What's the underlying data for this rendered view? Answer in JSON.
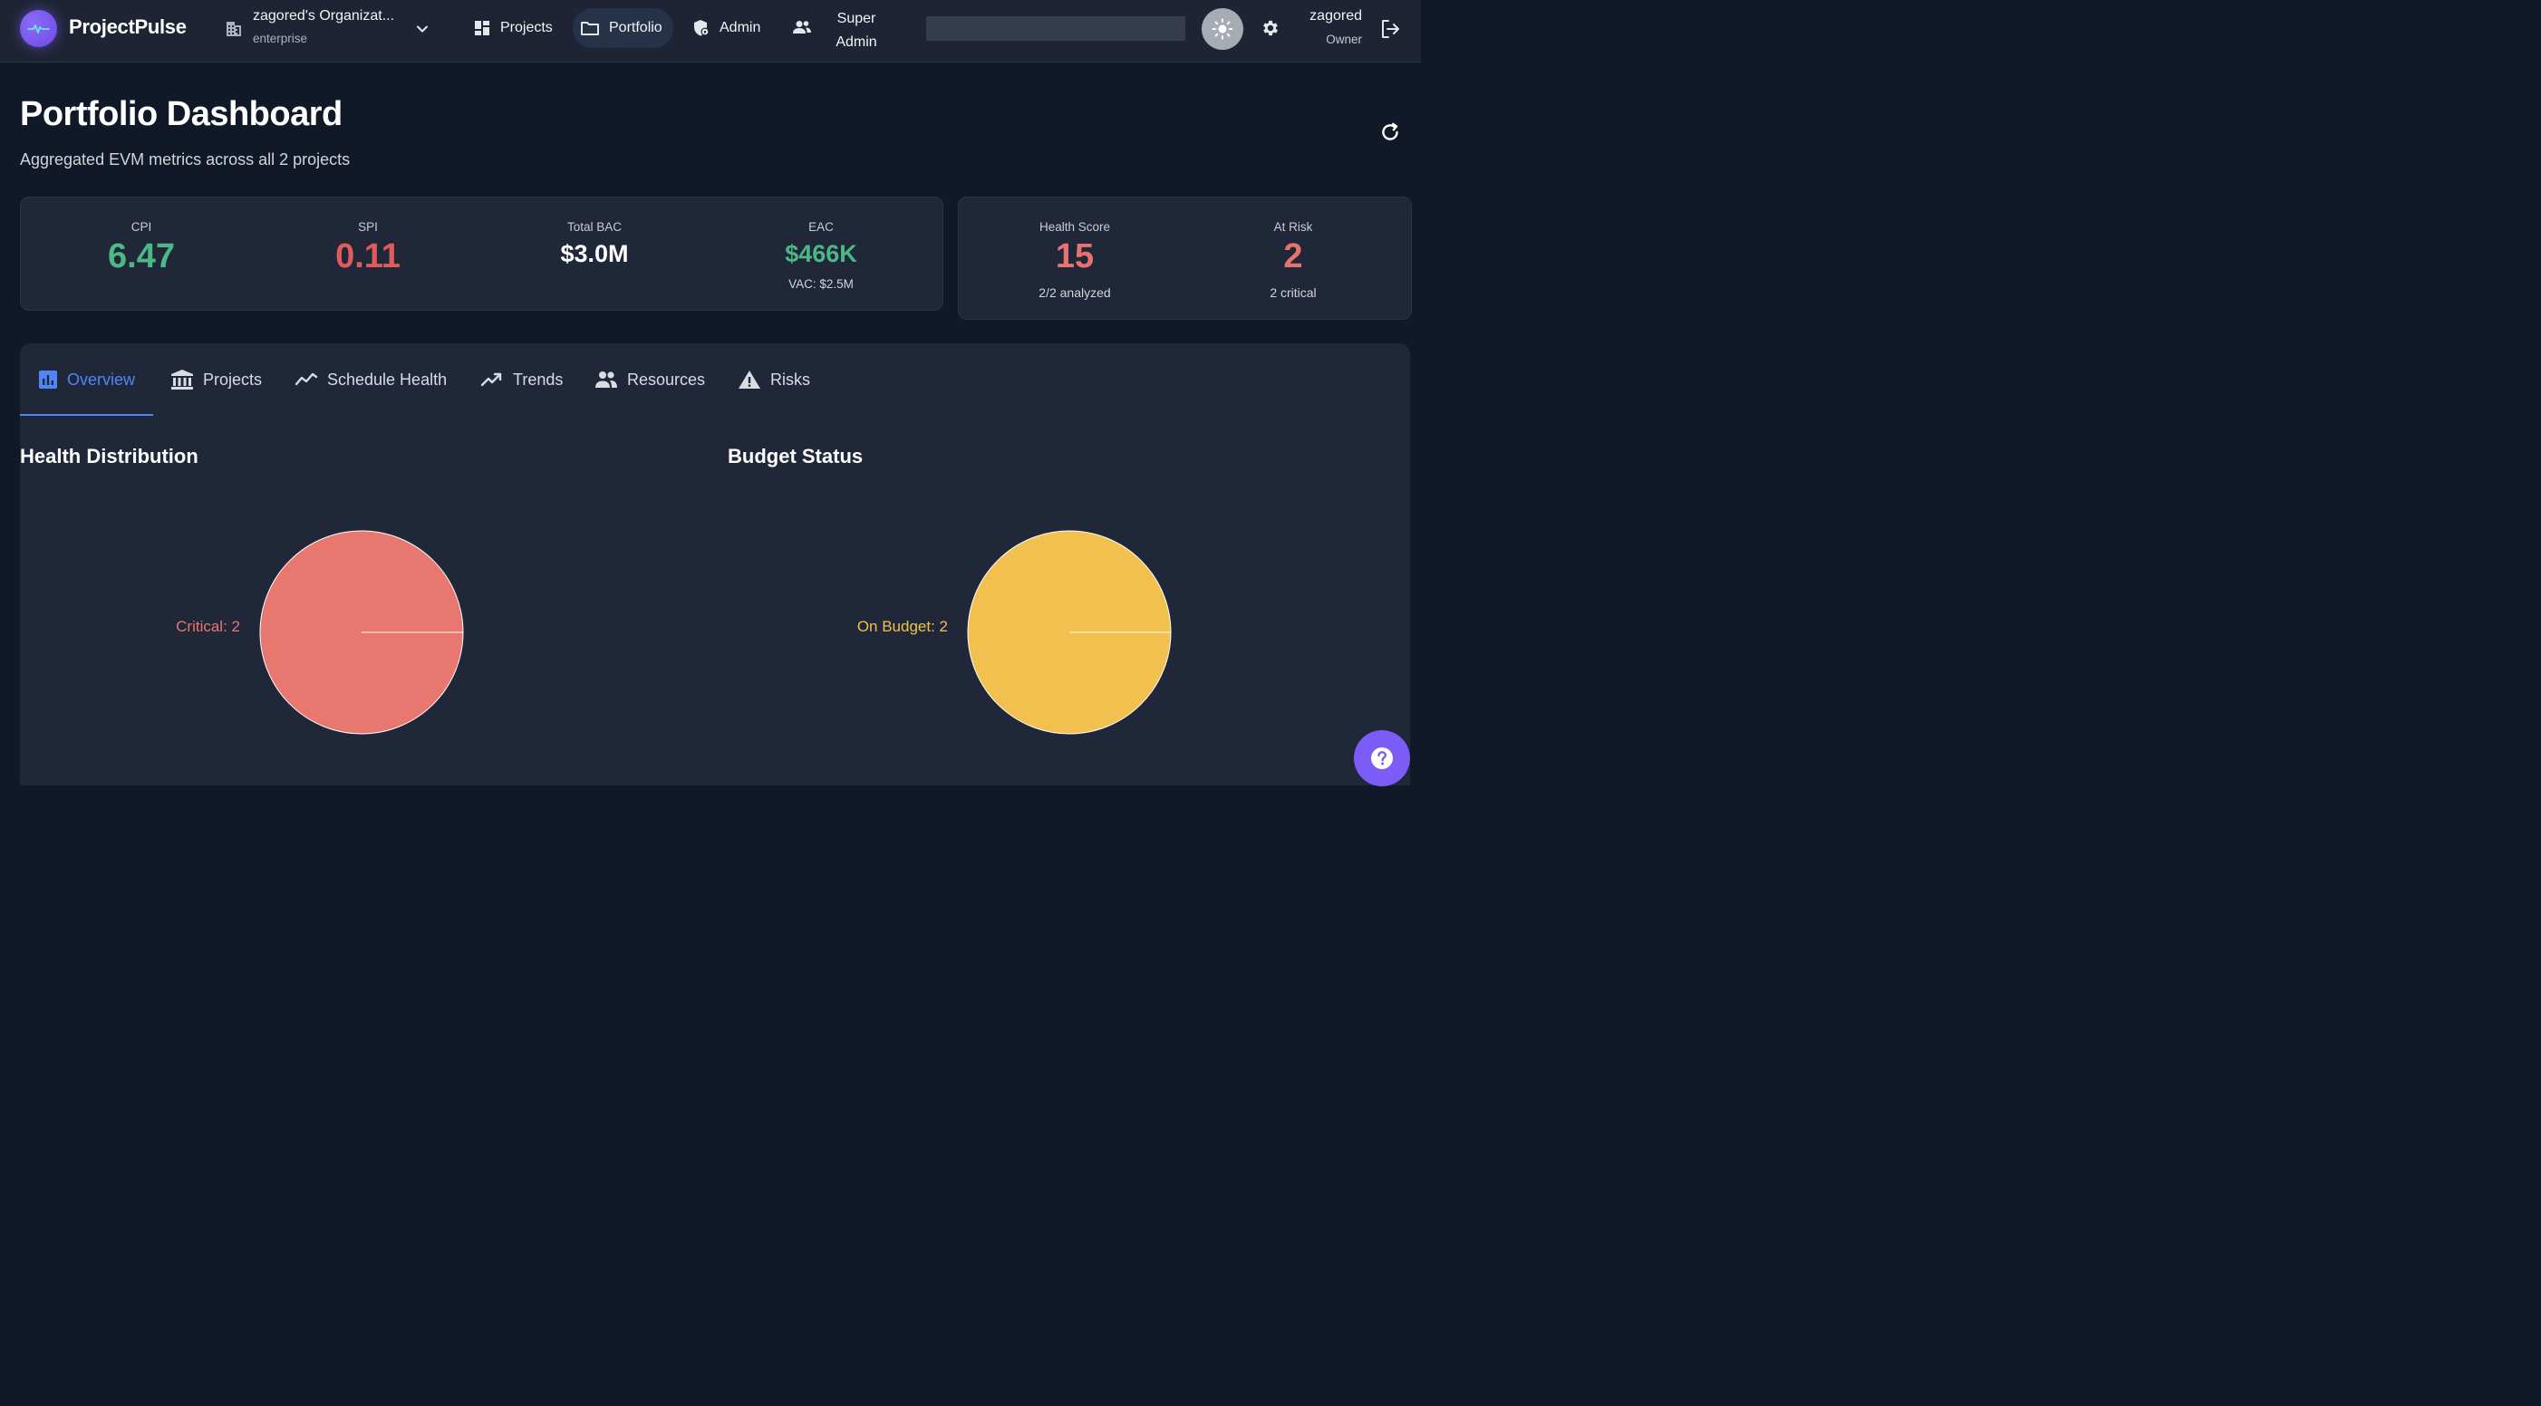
{
  "app": {
    "name": "ProjectPulse"
  },
  "org": {
    "name": "zagored's Organizat...",
    "plan": "enterprise"
  },
  "nav": {
    "projects": "Projects",
    "portfolio": "Portfolio",
    "admin": "Admin",
    "super_admin": "Super Admin"
  },
  "user": {
    "name": "zagored",
    "role": "Owner"
  },
  "icons": {
    "logo": "pulse-icon",
    "org": "building-icon",
    "chevron": "chevron-down-icon",
    "projects": "dashboard-grid-icon",
    "portfolio": "folder-icon",
    "admin": "shield-lock-icon",
    "super_admin": "people-icon",
    "theme": "sun-icon",
    "settings": "gear-icon",
    "logout": "logout-icon",
    "refresh": "refresh-icon",
    "help": "help-icon"
  },
  "page": {
    "title": "Portfolio Dashboard",
    "subtitle": "Aggregated EVM metrics across all 2 projects"
  },
  "metrics": {
    "cpi": {
      "label": "CPI",
      "value": "6.47",
      "color": "#4cb886"
    },
    "spi": {
      "label": "SPI",
      "value": "0.11",
      "color": "#e05c5c"
    },
    "total_bac": {
      "label": "Total BAC",
      "value": "$3.0M",
      "color": "#ffffff"
    },
    "eac": {
      "label": "EAC",
      "value": "$466K",
      "sub": "VAC: $2.5M",
      "color": "#4cb886"
    }
  },
  "health": {
    "score": {
      "label": "Health Score",
      "value": "15",
      "sub": "2/2 analyzed",
      "color": "#e8736e"
    },
    "at_risk": {
      "label": "At Risk",
      "value": "2",
      "sub": "2 critical",
      "color": "#e8736e"
    }
  },
  "tabs": [
    {
      "label": "Overview",
      "icon": "bar-chart-icon",
      "active": true
    },
    {
      "label": "Projects",
      "icon": "bank-icon",
      "active": false
    },
    {
      "label": "Schedule Health",
      "icon": "line-chart-icon",
      "active": false
    },
    {
      "label": "Trends",
      "icon": "trending-up-icon",
      "active": false
    },
    {
      "label": "Resources",
      "icon": "people-icon",
      "active": false
    },
    {
      "label": "Risks",
      "icon": "warning-icon",
      "active": false
    }
  ],
  "charts": {
    "health": {
      "title": "Health Distribution",
      "label": "Critical: 2"
    },
    "budget": {
      "title": "Budget Status",
      "label": "On Budget: 2"
    }
  },
  "chart_data": [
    {
      "type": "pie",
      "title": "Health Distribution",
      "slices": [
        {
          "label": "Critical",
          "value": 2,
          "color": "#e8776f"
        }
      ]
    },
    {
      "type": "pie",
      "title": "Budget Status",
      "slices": [
        {
          "label": "On Budget",
          "value": 2,
          "color": "#f1c04e"
        }
      ]
    }
  ]
}
